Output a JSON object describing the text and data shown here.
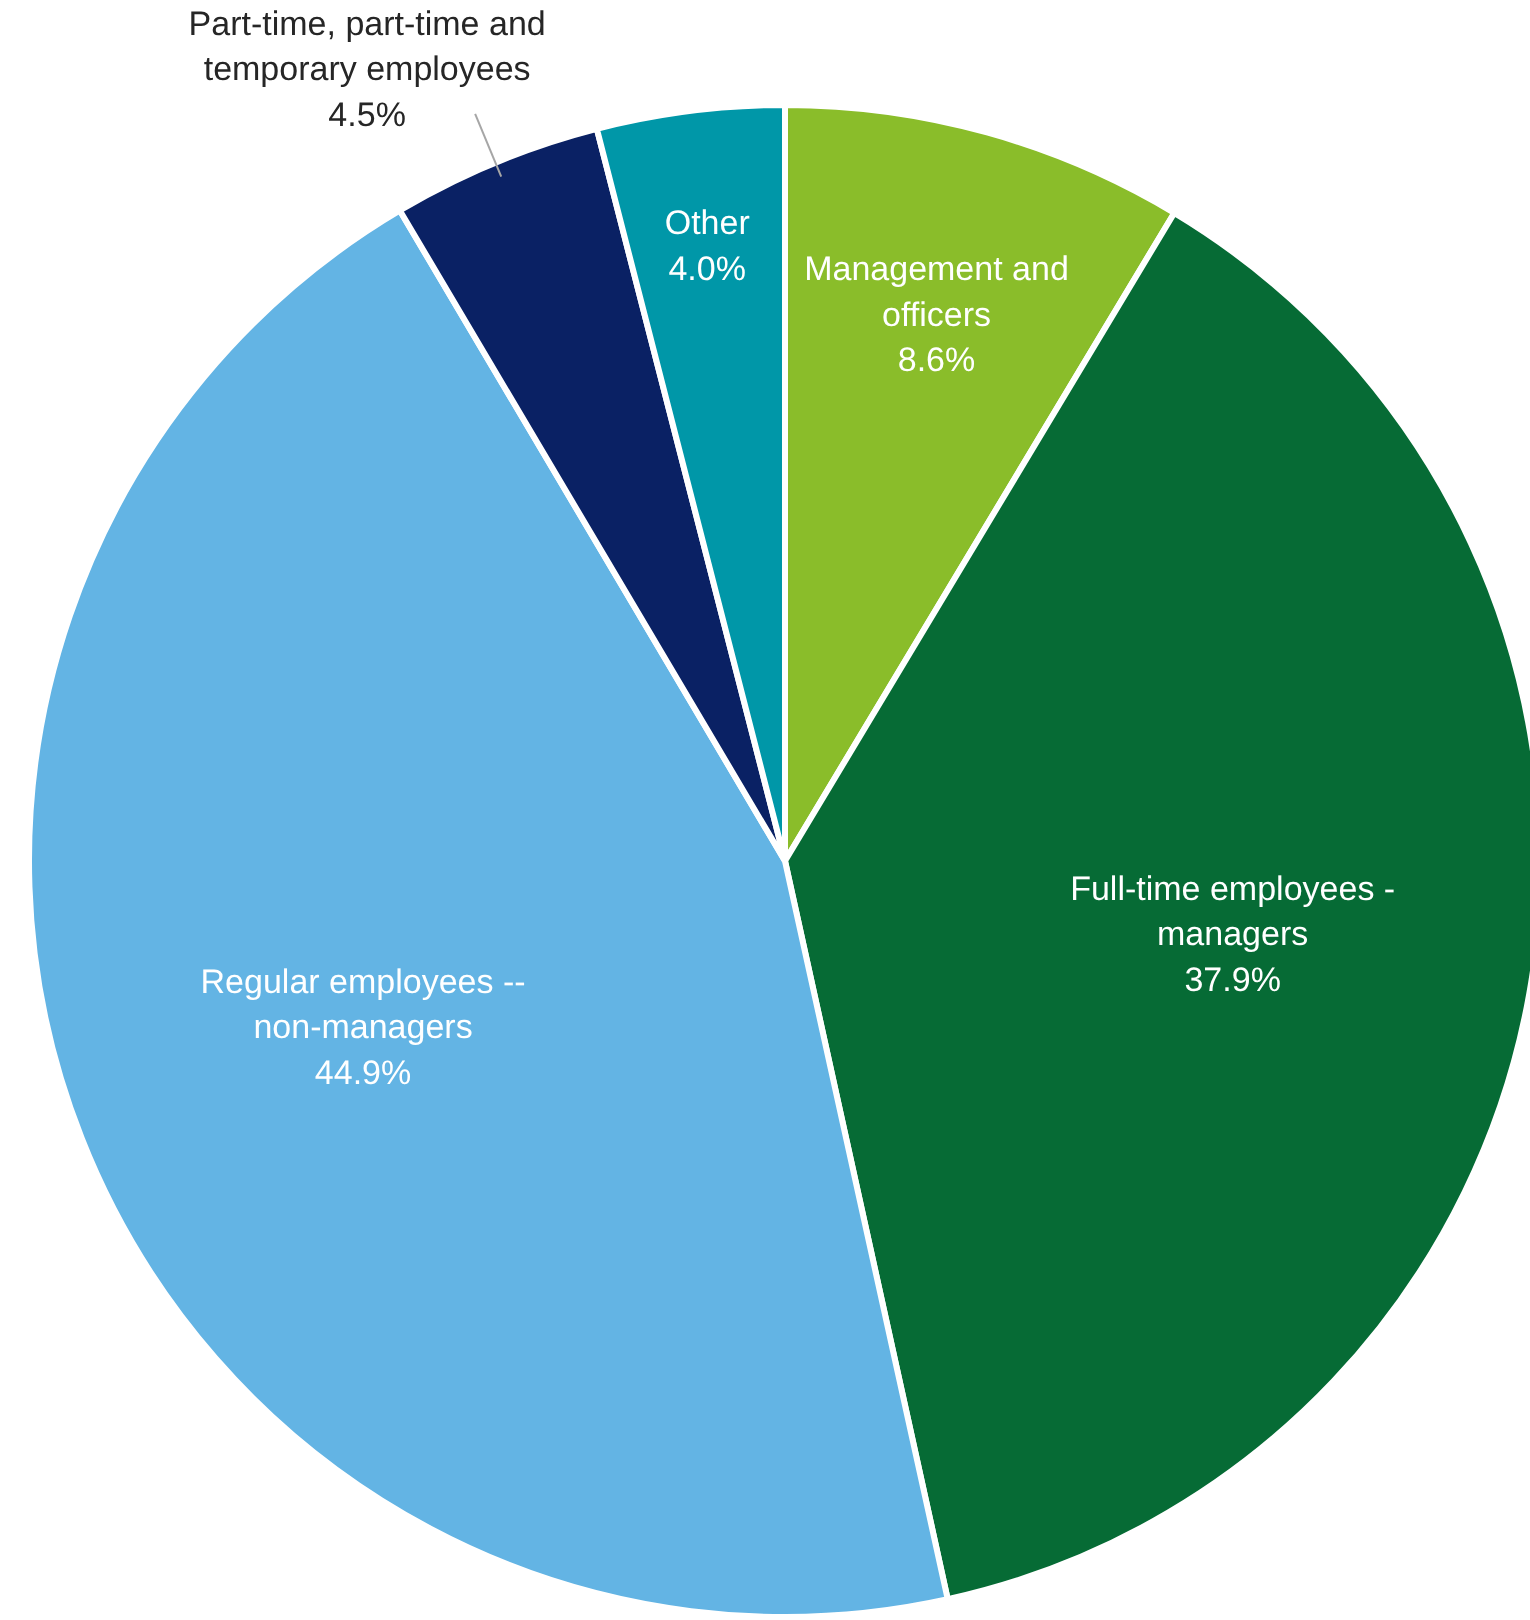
{
  "chart_data": {
    "type": "pie",
    "categories": [
      "Management and\nofficers",
      "Full-time employees -\nmanagers",
      "Regular employees --\nnon-managers",
      "Part-time, part-time and\ntemporary employees",
      "Other"
    ],
    "values": [
      8.6,
      37.9,
      44.9,
      4.5,
      4.0
    ],
    "value_labels": [
      "8.6%",
      "37.9%",
      "44.9%",
      "4.5%",
      "4.0%"
    ],
    "colors": [
      "#8abd2a",
      "#066b35",
      "#63b4e4",
      "#0a2164",
      "#0097a8"
    ]
  }
}
